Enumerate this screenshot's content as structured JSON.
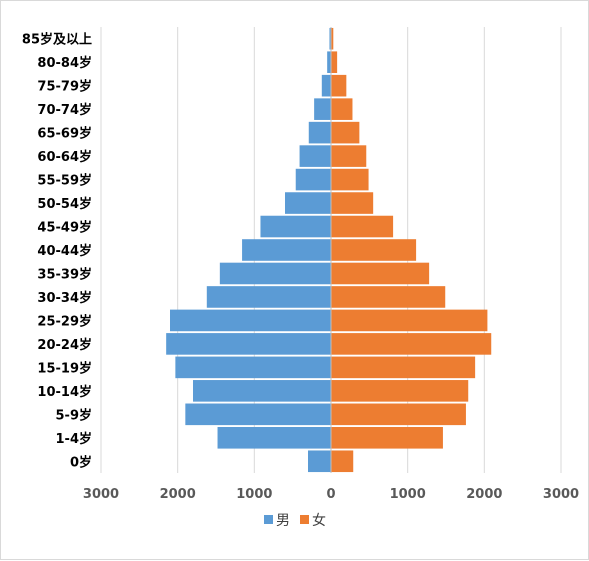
{
  "chart_data": {
    "type": "bar",
    "orientation": "horizontal",
    "layout": "population-pyramid",
    "categories": [
      "0岁",
      "1-4岁",
      "5-9岁",
      "10-14岁",
      "15-19岁",
      "20-24岁",
      "25-29岁",
      "30-34岁",
      "35-39岁",
      "40-44岁",
      "45-49岁",
      "50-54岁",
      "55-59岁",
      "60-64岁",
      "65-69岁",
      "70-74岁",
      "75-79岁",
      "80-84岁",
      "85岁及以上"
    ],
    "series": [
      {
        "name": "男",
        "color": "#5b9bd5",
        "side": "left",
        "values": [
          300,
          1480,
          1900,
          1800,
          2030,
          2150,
          2100,
          1620,
          1450,
          1160,
          920,
          600,
          460,
          410,
          290,
          220,
          120,
          50,
          20
        ]
      },
      {
        "name": "女",
        "color": "#ed7d31",
        "side": "right",
        "values": [
          290,
          1460,
          1760,
          1790,
          1880,
          2090,
          2040,
          1490,
          1280,
          1110,
          810,
          550,
          490,
          460,
          370,
          280,
          200,
          80,
          30
        ]
      }
    ],
    "xlim": [
      -3000,
      3000
    ],
    "x_ticks": [
      -3000,
      -2000,
      -1000,
      0,
      1000,
      2000,
      3000
    ],
    "x_tick_labels": [
      "3000",
      "2000",
      "1000",
      "0",
      "1000",
      "2000",
      "3000"
    ],
    "grid": true,
    "legend_position": "bottom",
    "title": "",
    "xlabel": "",
    "ylabel": ""
  }
}
